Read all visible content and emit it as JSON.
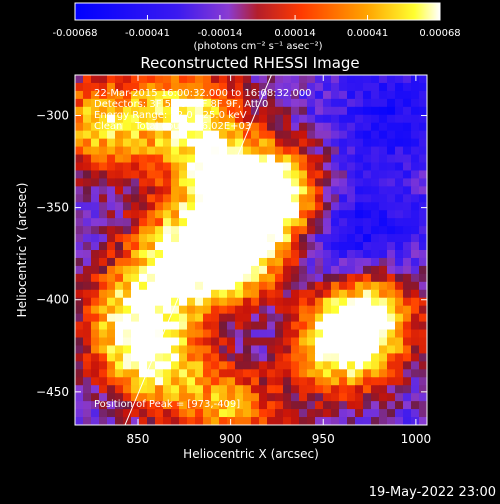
{
  "colorbar": {
    "tick_labels": [
      "-0.00068",
      "-0.00041",
      "-0.00014",
      "0.00014",
      "0.00041",
      "0.00068"
    ],
    "unit_label": "(photons cm⁻² s⁻¹ asec⁻²)"
  },
  "annotations": {
    "line1": "22-Mar-2015 16:00:32.000 to 16:08:32.000",
    "line2": "Detectors: 3F 5F 6F 7F 8F 9F, Att 0",
    "line3": "Energy Range: 12.0 - 25.0 keV",
    "line4": "Clean    Total counts: 6.02E+03",
    "peak": "Position of Peak = [973,-409]"
  },
  "footer": {
    "timestamp": "19-May-2022 23:00"
  },
  "chart_data": {
    "type": "heatmap",
    "title": "Reconstructed RHESSI Image",
    "xlabel": "Heliocentric X (arcsec)",
    "ylabel": "Heliocentric Y (arcsec)",
    "xlim": [
      816,
      1006
    ],
    "ylim": [
      -468,
      -278
    ],
    "x_ticks": [
      850,
      900,
      950,
      1000
    ],
    "y_ticks": [
      -300,
      -350,
      -400,
      -450
    ],
    "x_tick_labels": [
      "850",
      "900",
      "950",
      "1000"
    ],
    "y_tick_labels": [
      "−300",
      "−350",
      "−400",
      "−450"
    ],
    "value_range": [
      -0.00068,
      0.00068
    ],
    "limb_line": {
      "x": [
        843,
        922
      ],
      "y": [
        -468,
        -278
      ]
    },
    "peak_position": [
      973,
      -409
    ],
    "bright_regions": [
      {
        "x": 830,
        "y": -305,
        "value": 0.0005
      },
      {
        "x": 878,
        "y": -300,
        "value": 0.0006
      },
      {
        "x": 900,
        "y": -342,
        "value": 0.00062
      },
      {
        "x": 925,
        "y": -345,
        "value": 0.00065
      },
      {
        "x": 870,
        "y": -378,
        "value": 0.00055
      },
      {
        "x": 903,
        "y": -382,
        "value": 0.0006
      },
      {
        "x": 845,
        "y": -410,
        "value": 0.00042
      },
      {
        "x": 860,
        "y": -435,
        "value": 0.00045
      },
      {
        "x": 973,
        "y": -409,
        "value": 0.00068
      },
      {
        "x": 955,
        "y": -425,
        "value": 0.0005
      },
      {
        "x": 900,
        "y": -460,
        "value": 0.0004
      }
    ],
    "dark_regions": [
      {
        "x": 985,
        "y": -300,
        "value": -0.0005
      },
      {
        "x": 920,
        "y": -410,
        "value": -0.0004
      },
      {
        "x": 955,
        "y": -375,
        "value": -0.00045
      },
      {
        "x": 975,
        "y": -360,
        "value": -0.00045
      }
    ]
  }
}
